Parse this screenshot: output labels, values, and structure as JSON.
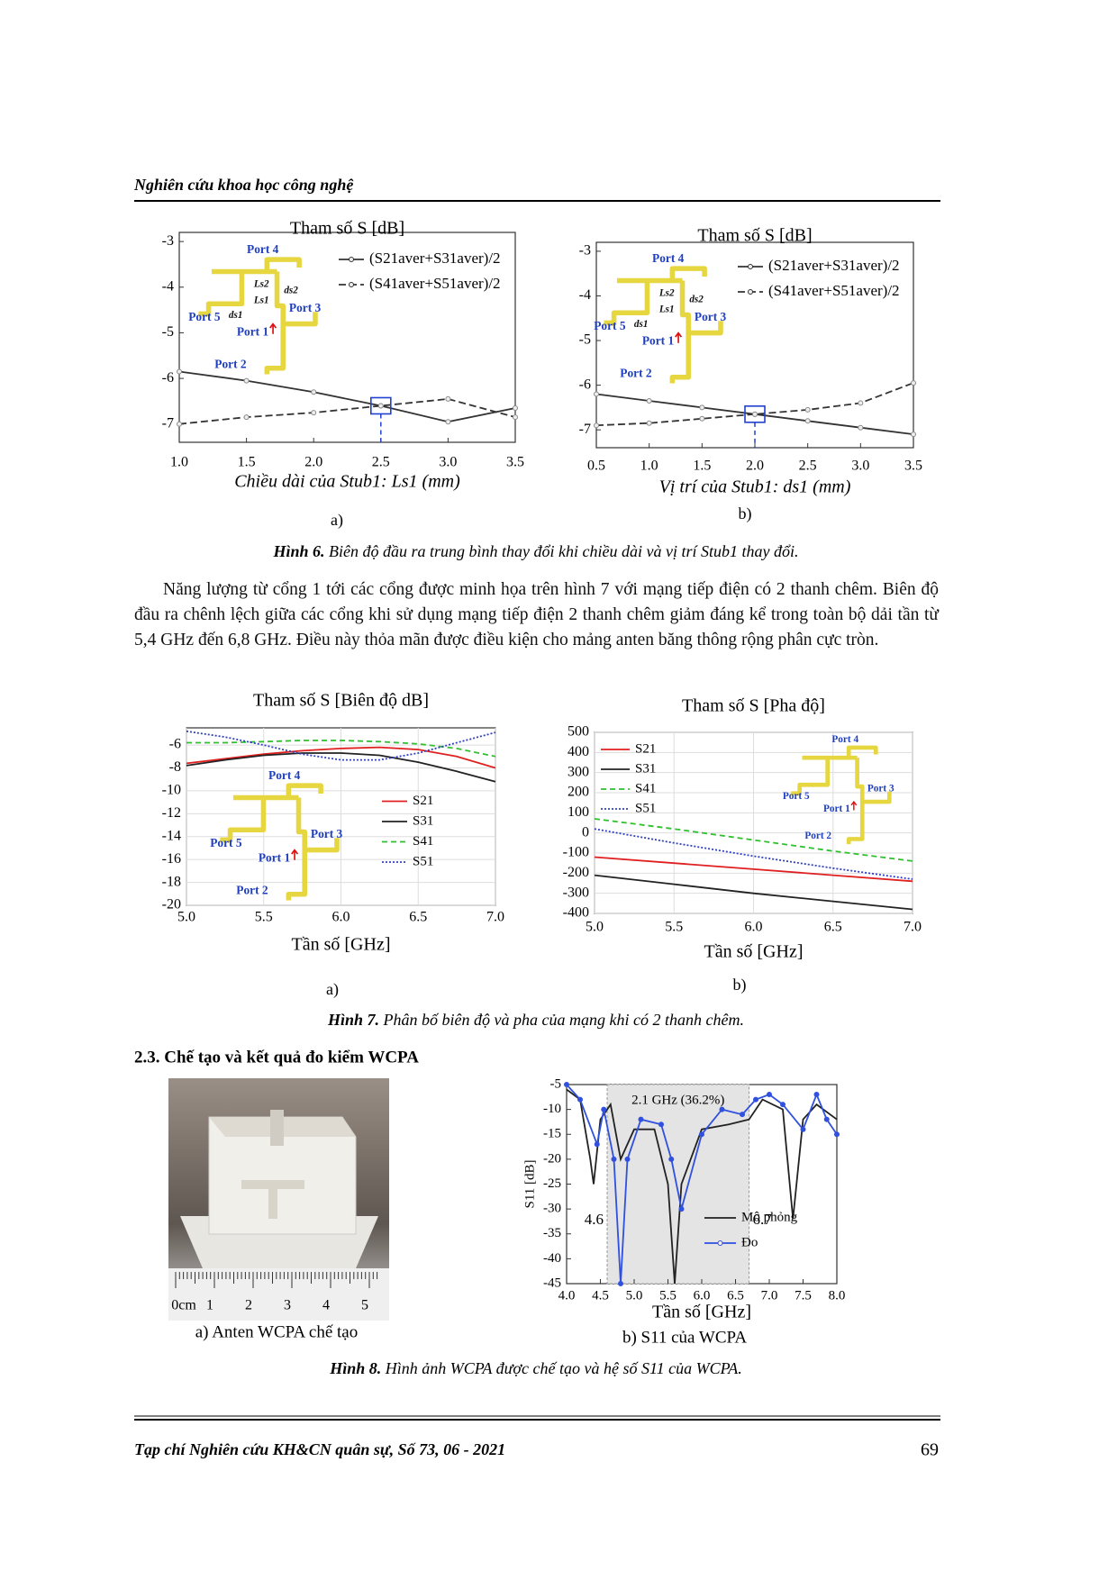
{
  "header": {
    "title": "Nghiên cứu khoa học công nghệ"
  },
  "figure6": {
    "panels": [
      {
        "type": "line",
        "title": "Tham số S [dB]",
        "x_label": "Chiều dài của Stub1: Ls1 (mm)",
        "x": [
          1.0,
          1.5,
          2.0,
          2.5,
          3.0,
          3.5
        ],
        "series": [
          {
            "name": "(S21aver+S31aver)/2",
            "color": "#333333",
            "dash": "none",
            "markers": true,
            "values": [
              -5.85,
              -6.05,
              -6.3,
              -6.6,
              -6.95,
              -6.65
            ]
          },
          {
            "name": "(S41aver+S51aver)/2",
            "color": "#333333",
            "dash": "8 4",
            "markers": true,
            "values": [
              -7.0,
              -6.85,
              -6.75,
              -6.6,
              -6.45,
              -6.85
            ]
          }
        ],
        "xlim": [
          1.0,
          3.5
        ],
        "ylim": [
          -7.4,
          -2.8
        ],
        "xticks": [
          {
            "value": 1,
            "label": "1.0"
          },
          1.5,
          {
            "value": 2,
            "label": "2.0"
          },
          2.5,
          {
            "value": 3,
            "label": "3.0"
          },
          3.5
        ],
        "yticks": [
          -3,
          -4,
          -5,
          -6,
          -7
        ],
        "grid": false,
        "legend": "upper right",
        "highlight": {
          "x": 2.5,
          "y": -6.6
        },
        "inset": {
          "port4": "Port 4",
          "ls2": "Ls2",
          "ds2": "ds2",
          "ls1": "Ls1",
          "ds1": "ds1",
          "port5": "Port 5",
          "port3": "Port 3",
          "port1": "Port 1",
          "port2": "Port 2"
        }
      },
      {
        "type": "line",
        "title": "Tham số S [dB]",
        "x_label": "Vị trí của Stub1: ds1 (mm)",
        "x": [
          0.5,
          1.0,
          1.5,
          2.0,
          2.5,
          3.0,
          3.5
        ],
        "series": [
          {
            "name": "(S21aver+S31aver)/2",
            "color": "#333333",
            "dash": "none",
            "markers": true,
            "values": [
              -6.2,
              -6.35,
              -6.5,
              -6.65,
              -6.8,
              -6.95,
              -7.1
            ]
          },
          {
            "name": "(S41aver+S51aver)/2",
            "color": "#333333",
            "dash": "8 4",
            "markers": true,
            "values": [
              -6.9,
              -6.85,
              -6.75,
              -6.65,
              -6.55,
              -6.4,
              -5.95
            ]
          }
        ],
        "xlim": [
          0.5,
          3.5
        ],
        "ylim": [
          -7.4,
          -2.8
        ],
        "xticks": [
          0.5,
          {
            "value": 1,
            "label": "1.0"
          },
          1.5,
          {
            "value": 2,
            "label": "2.0"
          },
          2.5,
          {
            "value": 3,
            "label": "3.0"
          },
          3.5
        ],
        "yticks": [
          -3,
          -4,
          -5,
          -6,
          -7
        ],
        "grid": false,
        "legend": "upper right",
        "highlight": {
          "x": 2.0,
          "y": -6.65
        },
        "inset": {
          "port4": "Port 4",
          "ls2": "Ls2",
          "ds2": "ds2",
          "ls1": "Ls1",
          "ds1": "ds1",
          "port5": "Port 5",
          "port3": "Port 3",
          "port1": "Port 1",
          "port2": "Port 2"
        }
      }
    ],
    "labels": [
      "a)",
      "b)"
    ],
    "caption_label": "Hình 6.",
    "caption": " Biên độ đầu ra trung bình thay đổi khi chiều dài và vị trí Stub1 thay đổi."
  },
  "paragraph": "Năng lượng từ cổng 1 tới các cổng được minh họa trên hình 7 với mạng tiếp điện có 2 thanh chêm. Biên độ đầu ra chênh lệch giữa các cổng khi sử dụng mạng tiếp điện 2 thanh chêm giảm đáng kể trong toàn bộ dải tần từ 5,4 GHz đến 6,8 GHz. Điều này thỏa mãn được điều kiện cho mảng anten băng thông rộng phân cực tròn.",
  "figure7": {
    "panels": [
      {
        "type": "line",
        "title": "Tham số S [Biên độ dB]",
        "x_label": "Tần số [GHz]",
        "x": [
          5.0,
          5.25,
          5.5,
          5.75,
          6.0,
          6.25,
          6.5,
          6.75,
          7.0
        ],
        "series": [
          {
            "name": "S21",
            "color": "#e02020",
            "dash": "none",
            "values": [
              -7.6,
              -7.2,
              -6.8,
              -6.5,
              -6.3,
              -6.2,
              -6.4,
              -7.0,
              -8.0
            ]
          },
          {
            "name": "S31",
            "color": "#222222",
            "dash": "none",
            "values": [
              -7.8,
              -7.3,
              -6.9,
              -6.7,
              -6.7,
              -6.9,
              -7.5,
              -8.3,
              -9.2
            ]
          },
          {
            "name": "S41",
            "color": "#2fbf2f",
            "dash": "6 4",
            "values": [
              -5.8,
              -5.8,
              -5.7,
              -5.6,
              -5.6,
              -5.7,
              -5.9,
              -6.3,
              -7.0
            ]
          },
          {
            "name": "S51",
            "color": "#3040c0",
            "dash": "2 2",
            "values": [
              -4.8,
              -5.3,
              -6.0,
              -6.8,
              -7.3,
              -7.3,
              -6.7,
              -5.8,
              -4.9
            ]
          }
        ],
        "xlim": [
          5.0,
          7.0
        ],
        "ylim": [
          -20,
          -4.5
        ],
        "xticks": [
          {
            "value": 5,
            "label": "5.0"
          },
          5.5,
          {
            "value": 6,
            "label": "6.0"
          },
          6.5,
          {
            "value": 7,
            "label": "7.0"
          }
        ],
        "yticks": [
          -6,
          -8,
          -10,
          -12,
          -14,
          -16,
          -18,
          -20
        ],
        "grid": true,
        "legend": "center right",
        "inset": {
          "port4": "Port 4",
          "port5": "Port 5",
          "port3": "Port 3",
          "port1": "Port 1",
          "port2": "Port 2"
        }
      },
      {
        "type": "line",
        "title": "Tham số S [Pha độ]",
        "x_label": "Tần số [GHz]",
        "x": [
          5.0,
          5.5,
          6.0,
          6.5,
          7.0
        ],
        "series": [
          {
            "name": "S21",
            "color": "#e02020",
            "dash": "none",
            "values": [
              -120,
              -150,
              -180,
              -210,
              -240
            ]
          },
          {
            "name": "S31",
            "color": "#222222",
            "dash": "none",
            "values": [
              -210,
              -255,
              -300,
              -340,
              -380
            ]
          },
          {
            "name": "S41",
            "color": "#2fbf2f",
            "dash": "6 4",
            "values": [
              70,
              20,
              -35,
              -90,
              -140
            ]
          },
          {
            "name": "S51",
            "color": "#3040c0",
            "dash": "2 2",
            "values": [
              20,
              -50,
              -115,
              -175,
              -230
            ]
          }
        ],
        "xlim": [
          5.0,
          7.0
        ],
        "ylim": [
          -400,
          500
        ],
        "xticks": [
          {
            "value": 5,
            "label": "5.0"
          },
          5.5,
          {
            "value": 6,
            "label": "6.0"
          },
          6.5,
          {
            "value": 7,
            "label": "7.0"
          }
        ],
        "yticks": [
          500,
          400,
          300,
          200,
          100,
          0,
          -100,
          -200,
          -300,
          -400
        ],
        "grid": true,
        "legend": "upper left",
        "inset": {
          "port4": "Port 4",
          "port5": "Port 5",
          "port3": "Port 3",
          "port1": "Port 1",
          "port2": "Port 2"
        }
      }
    ],
    "labels": [
      "a)",
      "b)"
    ],
    "caption_label": "Hình 7.",
    "caption": " Phân bố biên độ và pha của mạng khi có 2 thanh chêm."
  },
  "section_heading": "2.3. Chế tạo và kết quả đo kiểm WCPA",
  "figure8": {
    "photo": {
      "ruler": [
        "0cm",
        "1",
        "2",
        "3",
        "4",
        "5"
      ]
    },
    "chart": {
      "type": "line",
      "x_label": "Tần số [GHz]",
      "y_label": "S11 [dB]",
      "series": [
        {
          "name": "Mô phỏng",
          "color": "#222222",
          "dash": "none",
          "x": [
            4.0,
            4.2,
            4.35,
            4.4,
            4.5,
            4.65,
            4.8,
            5.0,
            5.3,
            5.5,
            5.6,
            5.7,
            6.0,
            6.4,
            6.7,
            6.9,
            7.2,
            7.35,
            7.5,
            7.7,
            8.0
          ],
          "values": [
            -6,
            -8,
            -20,
            -25,
            -12,
            -9,
            -20,
            -14,
            -14,
            -25,
            -45,
            -25,
            -14,
            -13,
            -12,
            -8,
            -10,
            -32,
            -12,
            -9,
            -12
          ]
        },
        {
          "name": "Đo",
          "color": "#3050e0",
          "dash": "none",
          "markers": true,
          "x": [
            4.0,
            4.2,
            4.45,
            4.55,
            4.7,
            4.8,
            4.9,
            5.1,
            5.4,
            5.55,
            5.7,
            6.0,
            6.3,
            6.6,
            6.8,
            7.0,
            7.2,
            7.5,
            7.7,
            7.85,
            8.0
          ],
          "values": [
            -5,
            -8,
            -17,
            -10,
            -20,
            -45,
            -20,
            -12,
            -13,
            -20,
            -30,
            -15,
            -10,
            -11,
            -8,
            -7,
            -9,
            -14,
            -7,
            -12,
            -15
          ]
        }
      ],
      "xlim": [
        4.0,
        8.0
      ],
      "ylim": [
        -45,
        -5
      ],
      "xticks": [
        {
          "value": 4,
          "label": "4.0"
        },
        4.5,
        {
          "value": 5,
          "label": "5.0"
        },
        5.5,
        {
          "value": 6,
          "label": "6.0"
        },
        6.5,
        {
          "value": 7,
          "label": "7.0"
        },
        7.5,
        {
          "value": 8,
          "label": "8.0"
        }
      ],
      "yticks": [
        -5,
        -10,
        -15,
        -20,
        -25,
        -30,
        -35,
        -40,
        -45
      ],
      "grid": false,
      "legend": "lower right",
      "band": {
        "from": 4.6,
        "to": 6.7,
        "label": "2.1 GHz (36.2%)"
      }
    },
    "labels": [
      "a) Anten WCPA chế tạo",
      "b) S11 của WCPA"
    ],
    "caption_label": "Hình 8.",
    "caption": " Hình ảnh WCPA được chế tạo và hệ số S11 của WCPA."
  },
  "footer": {
    "journal": "Tạp chí Nghiên cứu KH&CN quân sự, Số 73, 06 - 2021",
    "page": 69
  }
}
